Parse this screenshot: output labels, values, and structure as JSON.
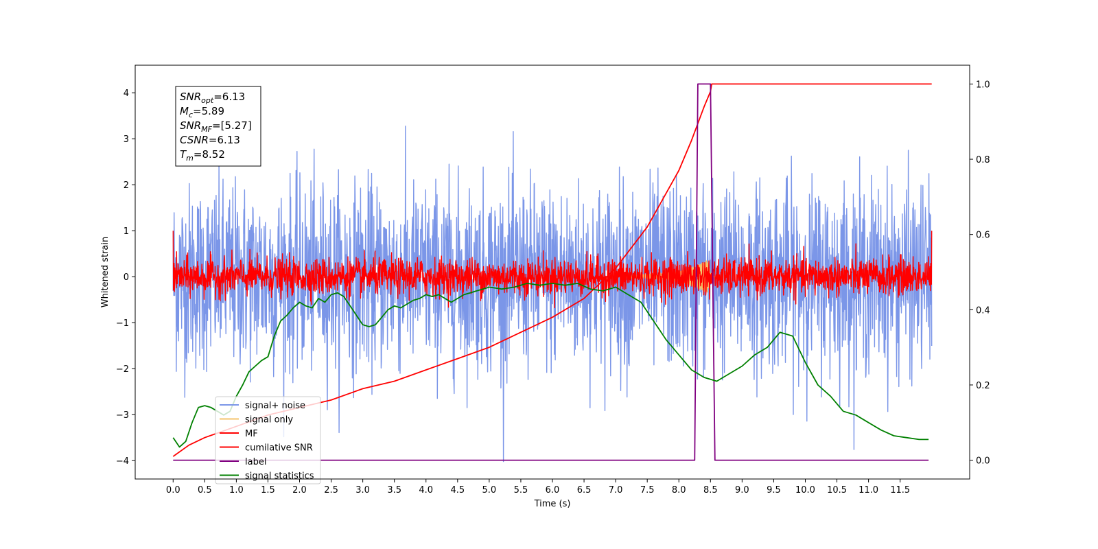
{
  "chart_data": {
    "type": "line",
    "title": "",
    "xlabel": "Time (s)",
    "ylabel": "Whitened strain",
    "y2label": "",
    "xlim": [
      -0.6,
      12.6
    ],
    "ylim": [
      -4.4,
      4.6
    ],
    "y2lim": [
      -0.05,
      1.05
    ],
    "x_ticks": [
      0.0,
      0.5,
      1.0,
      1.5,
      2.0,
      2.5,
      3.0,
      3.5,
      4.0,
      4.5,
      5.0,
      5.5,
      6.0,
      6.5,
      7.0,
      7.5,
      8.0,
      8.5,
      9.0,
      9.5,
      10.0,
      10.5,
      11.0,
      11.5
    ],
    "x_tick_labels": [
      "0.0",
      "0.5",
      "1.0",
      "1.5",
      "2.0",
      "2.5",
      "3.0",
      "3.5",
      "4.0",
      "4.5",
      "5.0",
      "5.5",
      "6.0",
      "6.5",
      "7.0",
      "7.5",
      "8.0",
      "8.5",
      "9.0",
      "9.5",
      "10.0",
      "10.5",
      "11.0",
      "11.5"
    ],
    "y_ticks": [
      4,
      3,
      2,
      1,
      0,
      -1,
      -2,
      -3,
      -4
    ],
    "y_tick_labels": [
      "4",
      "3",
      "2",
      "1",
      "0",
      "−1",
      "−2",
      "−3",
      "−4"
    ],
    "y2_ticks": [
      1.0,
      0.8,
      0.6,
      0.4,
      0.2,
      0.0
    ],
    "y2_tick_labels": [
      "1.0",
      "0.8",
      "0.6",
      "0.4",
      "0.2",
      "0.0"
    ],
    "grid": false,
    "legend": "lower-left",
    "annotations": [
      {
        "var": "SNR",
        "sub": "opt",
        "value": "=6.13"
      },
      {
        "var": "M",
        "sub": "c",
        "value": "=5.89"
      },
      {
        "var": "SNR",
        "sub": "MF",
        "value": "=[5.27]"
      },
      {
        "var": "CSNR",
        "sub": "",
        "value": "=6.13"
      },
      {
        "var": "T",
        "sub": "m",
        "value": "=8.52"
      }
    ],
    "series": [
      {
        "name": "signal+ noise",
        "color": "#7b96e8",
        "axis": "left",
        "kind": "noise",
        "amplitude": 1.0,
        "range": [
          0.0,
          12.0
        ]
      },
      {
        "name": "signal only",
        "color": "#f5c36b",
        "axis": "left",
        "kind": "chirp",
        "points": [
          [
            7.0,
            0.0
          ],
          [
            8.0,
            0.1
          ],
          [
            8.3,
            0.25
          ],
          [
            8.45,
            0.35
          ],
          [
            8.52,
            0.0
          ],
          [
            8.6,
            0.0
          ]
        ]
      },
      {
        "name": "MF",
        "color": "#ff0000",
        "axis": "left",
        "kind": "noise",
        "amplitude": 0.2,
        "range": [
          0.0,
          12.0
        ],
        "edges": [
          1.0,
          1.0
        ]
      },
      {
        "name": "cumilative SNR",
        "color": "#ff0000",
        "axis": "right",
        "x": [
          0.0,
          0.25,
          0.5,
          1.0,
          1.5,
          2.0,
          2.5,
          3.0,
          3.5,
          4.0,
          4.5,
          5.0,
          5.5,
          6.0,
          6.5,
          7.0,
          7.5,
          8.0,
          8.2,
          8.4,
          8.5,
          8.52,
          12.0
        ],
        "y": [
          0.01,
          0.04,
          0.06,
          0.09,
          0.12,
          0.14,
          0.16,
          0.19,
          0.21,
          0.24,
          0.27,
          0.3,
          0.34,
          0.38,
          0.43,
          0.51,
          0.62,
          0.77,
          0.85,
          0.94,
          0.98,
          1.0,
          1.0
        ]
      },
      {
        "name": "label",
        "color": "#800080",
        "axis": "right",
        "x": [
          0.0,
          8.25,
          8.3,
          8.5,
          8.57,
          11.95
        ],
        "y": [
          0.0,
          0.0,
          1.0,
          1.0,
          0.0,
          0.0
        ]
      },
      {
        "name": "signal statistics",
        "color": "#008000",
        "axis": "right",
        "x": [
          0.0,
          0.1,
          0.2,
          0.3,
          0.4,
          0.5,
          0.6,
          0.7,
          0.8,
          0.9,
          1.0,
          1.1,
          1.2,
          1.3,
          1.4,
          1.5,
          1.6,
          1.7,
          1.8,
          1.9,
          2.0,
          2.1,
          2.2,
          2.3,
          2.4,
          2.5,
          2.6,
          2.7,
          2.8,
          2.9,
          3.0,
          3.1,
          3.2,
          3.3,
          3.4,
          3.5,
          3.6,
          3.7,
          3.8,
          3.9,
          4.0,
          4.1,
          4.2,
          4.3,
          4.4,
          4.5,
          4.6,
          4.7,
          4.8,
          4.9,
          5.0,
          5.2,
          5.4,
          5.6,
          5.8,
          6.0,
          6.2,
          6.4,
          6.6,
          6.8,
          7.0,
          7.2,
          7.4,
          7.6,
          7.8,
          8.0,
          8.2,
          8.4,
          8.6,
          8.8,
          9.0,
          9.2,
          9.4,
          9.6,
          9.8,
          10.0,
          10.2,
          10.4,
          10.6,
          10.8,
          11.0,
          11.2,
          11.4,
          11.6,
          11.8,
          11.95
        ],
        "y": [
          0.06,
          0.035,
          0.05,
          0.1,
          0.14,
          0.145,
          0.14,
          0.13,
          0.12,
          0.13,
          0.17,
          0.2,
          0.235,
          0.25,
          0.265,
          0.275,
          0.33,
          0.37,
          0.385,
          0.405,
          0.42,
          0.41,
          0.405,
          0.43,
          0.42,
          0.44,
          0.445,
          0.435,
          0.41,
          0.385,
          0.36,
          0.355,
          0.36,
          0.38,
          0.4,
          0.41,
          0.405,
          0.415,
          0.425,
          0.43,
          0.44,
          0.435,
          0.44,
          0.43,
          0.42,
          0.43,
          0.44,
          0.445,
          0.45,
          0.455,
          0.46,
          0.455,
          0.46,
          0.47,
          0.465,
          0.47,
          0.465,
          0.47,
          0.455,
          0.45,
          0.46,
          0.44,
          0.42,
          0.37,
          0.32,
          0.28,
          0.24,
          0.22,
          0.21,
          0.23,
          0.25,
          0.28,
          0.3,
          0.34,
          0.33,
          0.26,
          0.2,
          0.17,
          0.13,
          0.12,
          0.1,
          0.08,
          0.065,
          0.06,
          0.055,
          0.055
        ]
      }
    ]
  }
}
